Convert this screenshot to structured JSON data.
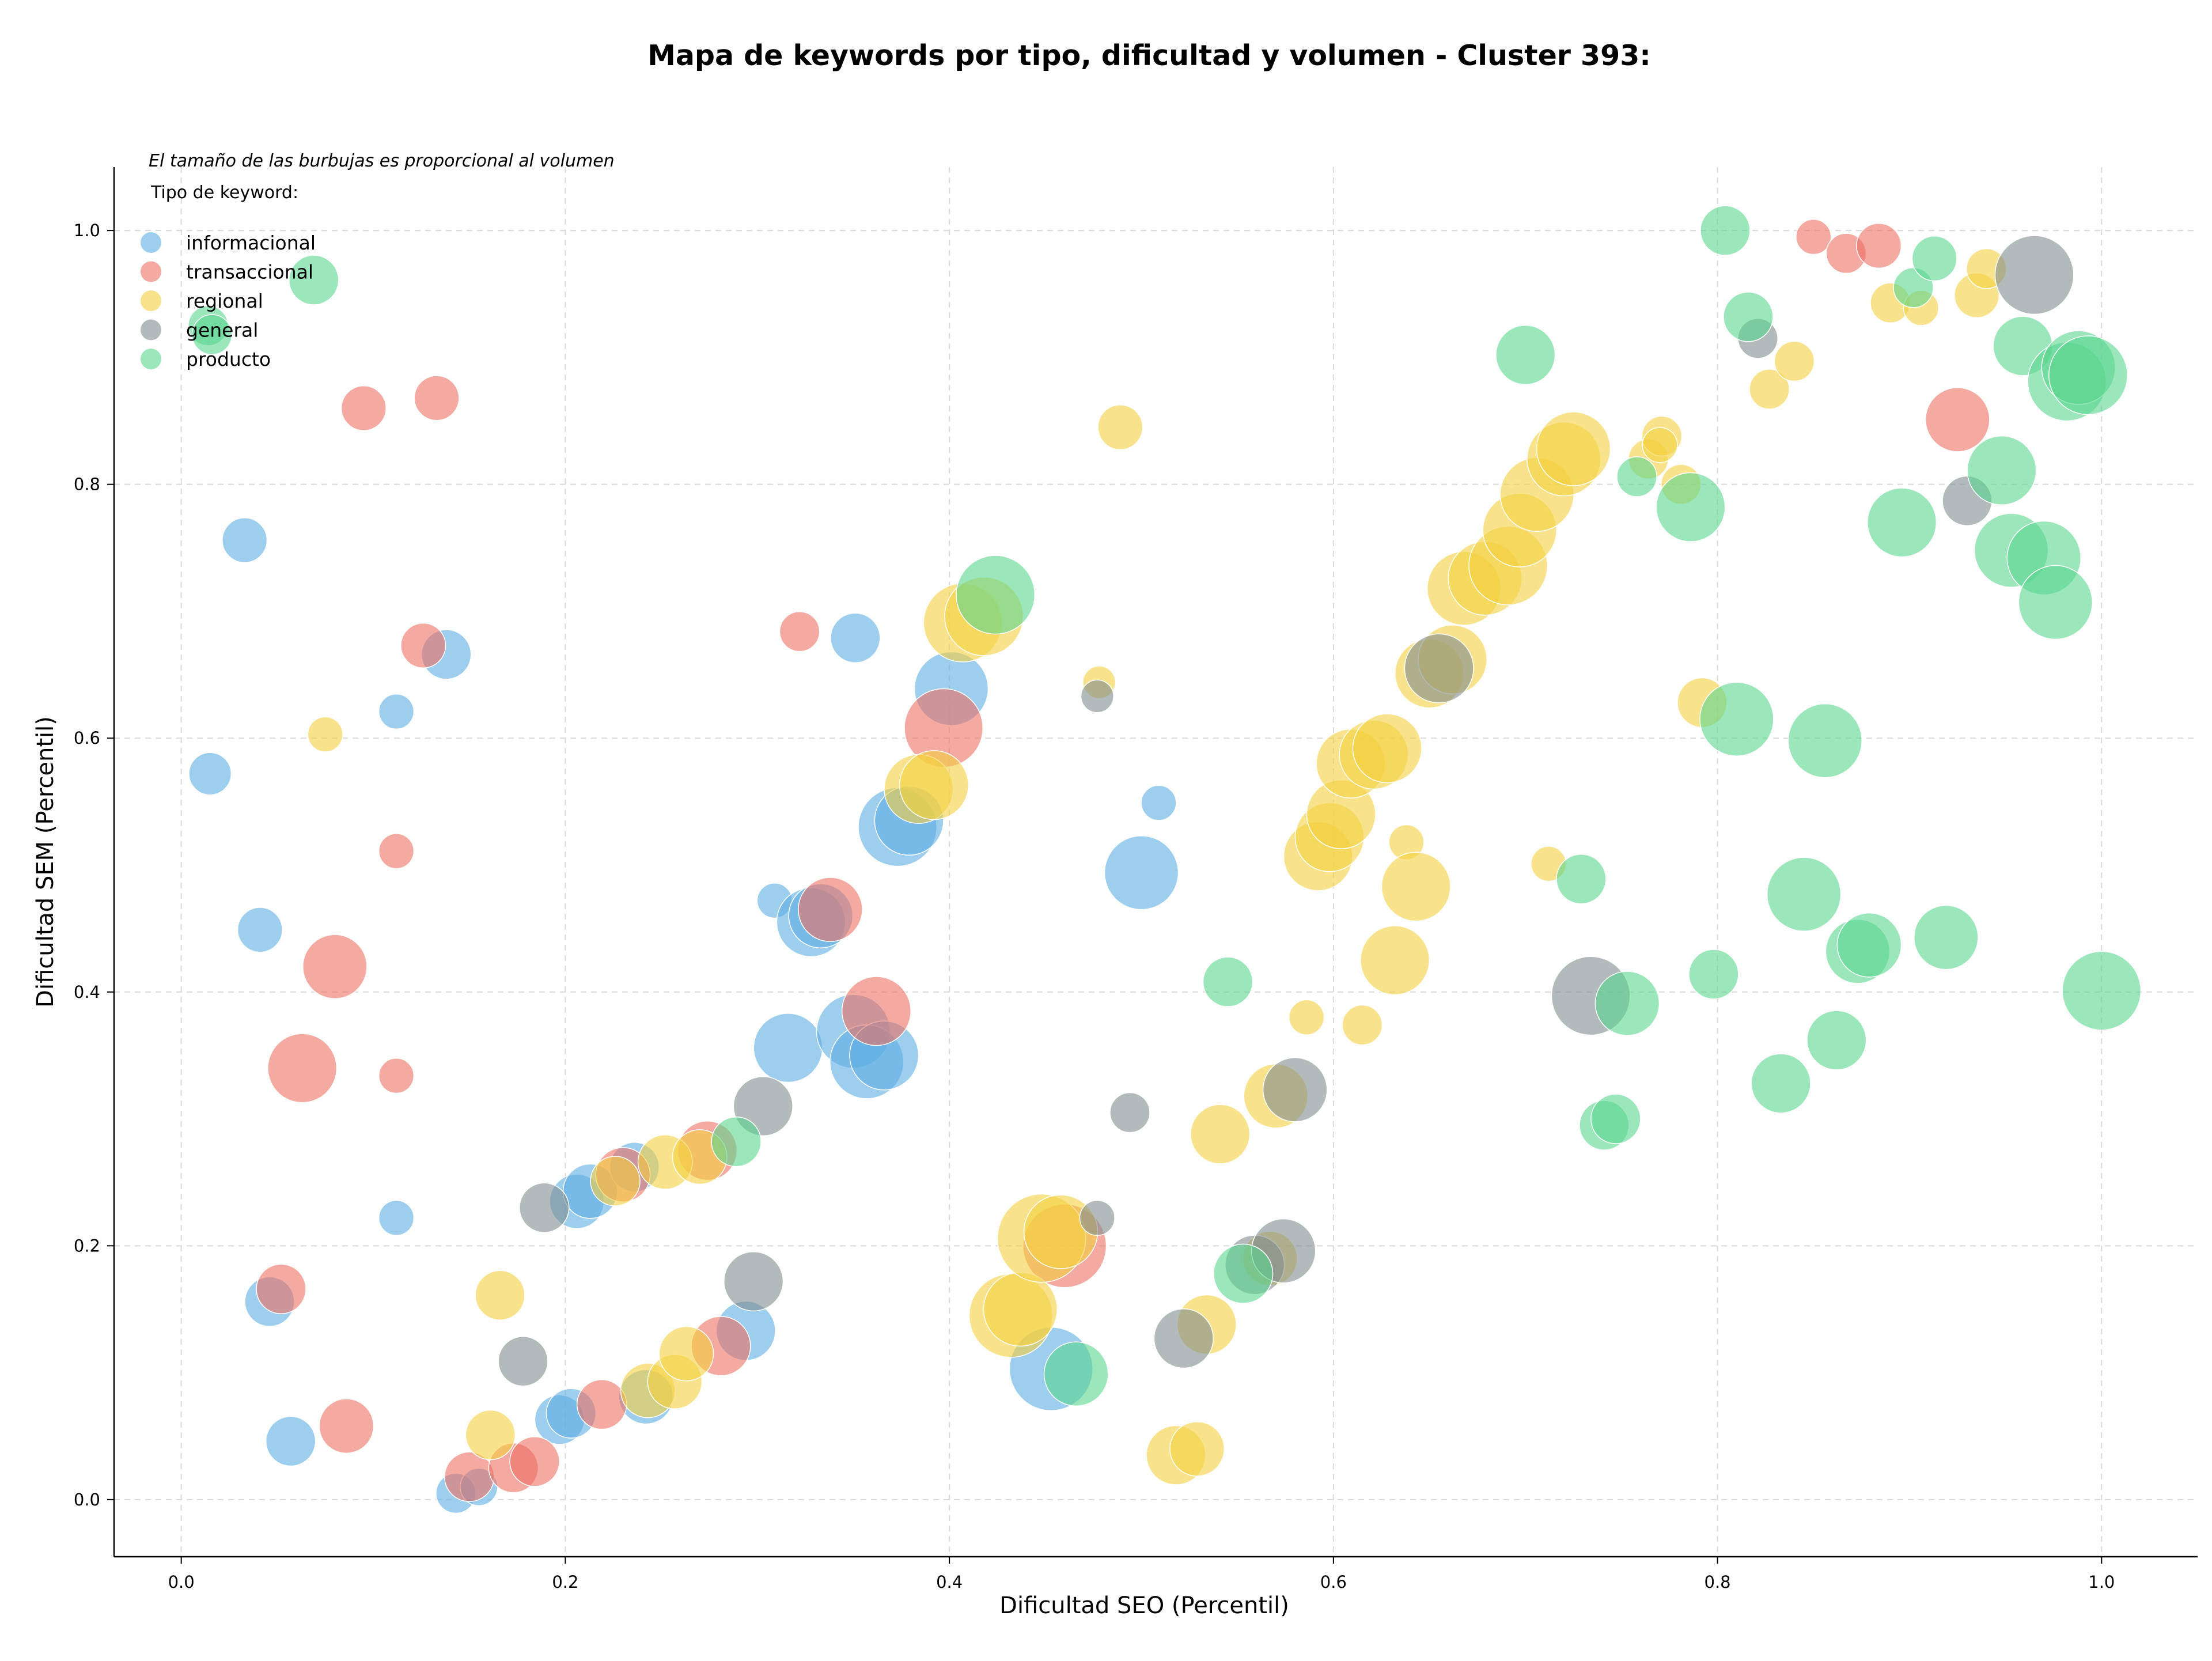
{
  "chart_data": {
    "type": "scatter",
    "title": "Mapa de keywords por tipo, dificultad y volumen - Cluster 393:",
    "xlabel": "Dificultad SEO (Percentil)",
    "ylabel": "Dificultad SEM (Percentil)",
    "xlim": [
      -0.035,
      1.05
    ],
    "ylim": [
      -0.045,
      1.05
    ],
    "xticks": [
      "0.0",
      "0.2",
      "0.4",
      "0.6",
      "0.8",
      "1.0"
    ],
    "yticks": [
      "0.0",
      "0.2",
      "0.4",
      "0.6",
      "0.8",
      "1.0"
    ],
    "grid": true,
    "note": "El tamaño de las burbujas es proporcional al volumen",
    "legend_title": "Tipo de keyword:",
    "legend_position": "top-left",
    "series": [
      {
        "name": "informacional",
        "color": "#5dade2",
        "points": [
          [
            0.033,
            0.756,
            0.4
          ],
          [
            0.015,
            0.572,
            0.35
          ],
          [
            0.041,
            0.449,
            0.4
          ],
          [
            0.112,
            0.621,
            0.2
          ],
          [
            0.138,
            0.666,
            0.5
          ],
          [
            0.112,
            0.222,
            0.2
          ],
          [
            0.046,
            0.156,
            0.5
          ],
          [
            0.057,
            0.046,
            0.5
          ],
          [
            0.143,
            0.005,
            0.3
          ],
          [
            0.155,
            0.01,
            0.25
          ],
          [
            0.197,
            0.063,
            0.5
          ],
          [
            0.203,
            0.068,
            0.5
          ],
          [
            0.242,
            0.081,
            0.6
          ],
          [
            0.294,
            0.133,
            0.7
          ],
          [
            0.206,
            0.235,
            0.6
          ],
          [
            0.213,
            0.243,
            0.6
          ],
          [
            0.236,
            0.262,
            0.5
          ],
          [
            0.309,
            0.472,
            0.2
          ],
          [
            0.316,
            0.356,
            0.9
          ],
          [
            0.328,
            0.455,
            0.9
          ],
          [
            0.333,
            0.46,
            0.8
          ],
          [
            0.35,
            0.369,
            1.0
          ],
          [
            0.357,
            0.345,
            1.0
          ],
          [
            0.366,
            0.35,
            0.9
          ],
          [
            0.373,
            0.53,
            1.1
          ],
          [
            0.379,
            0.535,
            0.9
          ],
          [
            0.351,
            0.679,
            0.5
          ],
          [
            0.401,
            0.639,
            1.0
          ],
          [
            0.5,
            0.494,
            1.0
          ],
          [
            0.509,
            0.549,
            0.2
          ],
          [
            0.453,
            0.103,
            1.2
          ]
        ]
      },
      {
        "name": "transaccional",
        "color": "#ec7063",
        "points": [
          [
            0.095,
            0.86,
            0.4
          ],
          [
            0.133,
            0.868,
            0.4
          ],
          [
            0.126,
            0.673,
            0.4
          ],
          [
            0.112,
            0.511,
            0.2
          ],
          [
            0.08,
            0.42,
            0.8
          ],
          [
            0.063,
            0.34,
            0.9
          ],
          [
            0.112,
            0.334,
            0.2
          ],
          [
            0.052,
            0.166,
            0.5
          ],
          [
            0.086,
            0.058,
            0.6
          ],
          [
            0.15,
            0.018,
            0.5
          ],
          [
            0.173,
            0.025,
            0.5
          ],
          [
            0.184,
            0.03,
            0.5
          ],
          [
            0.219,
            0.075,
            0.5
          ],
          [
            0.281,
            0.121,
            0.7
          ],
          [
            0.23,
            0.256,
            0.6
          ],
          [
            0.274,
            0.275,
            0.7
          ],
          [
            0.338,
            0.465,
            0.8
          ],
          [
            0.362,
            0.385,
            0.9
          ],
          [
            0.397,
            0.608,
            1.1
          ],
          [
            0.322,
            0.684,
            0.3
          ],
          [
            0.46,
            0.2,
            1.2
          ],
          [
            0.85,
            0.995,
            0.2
          ],
          [
            0.867,
            0.982,
            0.3
          ],
          [
            0.884,
            0.988,
            0.4
          ],
          [
            0.925,
            0.851,
            0.8
          ]
        ]
      },
      {
        "name": "regional",
        "color": "#f4d03f",
        "points": [
          [
            0.075,
            0.603,
            0.2
          ],
          [
            0.166,
            0.161,
            0.5
          ],
          [
            0.161,
            0.051,
            0.5
          ],
          [
            0.243,
            0.086,
            0.6
          ],
          [
            0.257,
            0.093,
            0.6
          ],
          [
            0.263,
            0.115,
            0.6
          ],
          [
            0.226,
            0.251,
            0.5
          ],
          [
            0.252,
            0.266,
            0.6
          ],
          [
            0.27,
            0.27,
            0.6
          ],
          [
            0.384,
            0.56,
            0.9
          ],
          [
            0.392,
            0.563,
            0.9
          ],
          [
            0.407,
            0.691,
            1.1
          ],
          [
            0.418,
            0.696,
            1.1
          ],
          [
            0.478,
            0.644,
            0.15
          ],
          [
            0.489,
            0.845,
            0.4
          ],
          [
            0.432,
            0.145,
            1.2
          ],
          [
            0.437,
            0.15,
            1.0
          ],
          [
            0.448,
            0.206,
            1.3
          ],
          [
            0.458,
            0.211,
            1.0
          ],
          [
            0.518,
            0.035,
            0.7
          ],
          [
            0.529,
            0.04,
            0.6
          ],
          [
            0.534,
            0.138,
            0.7
          ],
          [
            0.541,
            0.288,
            0.7
          ],
          [
            0.567,
            0.19,
            0.6
          ],
          [
            0.57,
            0.318,
            0.8
          ],
          [
            0.586,
            0.38,
            0.2
          ],
          [
            0.592,
            0.507,
            0.9
          ],
          [
            0.598,
            0.522,
            0.9
          ],
          [
            0.604,
            0.54,
            0.9
          ],
          [
            0.609,
            0.58,
            0.9
          ],
          [
            0.621,
            0.587,
            0.9
          ],
          [
            0.628,
            0.592,
            0.9
          ],
          [
            0.615,
            0.374,
            0.3
          ],
          [
            0.638,
            0.518,
            0.2
          ],
          [
            0.632,
            0.425,
            0.9
          ],
          [
            0.643,
            0.483,
            0.9
          ],
          [
            0.65,
            0.651,
            0.9
          ],
          [
            0.662,
            0.662,
            0.9
          ],
          [
            0.668,
            0.718,
            1.0
          ],
          [
            0.679,
            0.726,
            1.0
          ],
          [
            0.691,
            0.736,
            1.1
          ],
          [
            0.697,
            0.764,
            1.0
          ],
          [
            0.706,
            0.792,
            1.0
          ],
          [
            0.72,
            0.82,
            1.0
          ],
          [
            0.725,
            0.828,
            1.0
          ],
          [
            0.764,
            0.82,
            0.3
          ],
          [
            0.771,
            0.838,
            0.3
          ],
          [
            0.77,
            0.831,
            0.2
          ],
          [
            0.781,
            0.8,
            0.3
          ],
          [
            0.712,
            0.501,
            0.2
          ],
          [
            0.792,
            0.628,
            0.5
          ],
          [
            0.827,
            0.875,
            0.3
          ],
          [
            0.84,
            0.897,
            0.3
          ],
          [
            0.89,
            0.943,
            0.3
          ],
          [
            0.906,
            0.939,
            0.2
          ],
          [
            0.935,
            0.949,
            0.4
          ],
          [
            0.94,
            0.97,
            0.3
          ]
        ]
      },
      {
        "name": "general",
        "color": "#7f8c8d",
        "points": [
          [
            0.189,
            0.23,
            0.5
          ],
          [
            0.178,
            0.109,
            0.5
          ],
          [
            0.298,
            0.172,
            0.7
          ],
          [
            0.303,
            0.31,
            0.7
          ],
          [
            0.477,
            0.633,
            0.15
          ],
          [
            0.477,
            0.222,
            0.2
          ],
          [
            0.494,
            0.305,
            0.3
          ],
          [
            0.522,
            0.127,
            0.7
          ],
          [
            0.559,
            0.185,
            0.7
          ],
          [
            0.574,
            0.196,
            0.8
          ],
          [
            0.58,
            0.323,
            0.8
          ],
          [
            0.655,
            0.655,
            0.9
          ],
          [
            0.734,
            0.397,
            1.1
          ],
          [
            0.821,
            0.915,
            0.3
          ],
          [
            0.93,
            0.787,
            0.5
          ],
          [
            0.965,
            0.965,
            1.1
          ]
        ]
      },
      {
        "name": "producto",
        "color": "#58d68d",
        "points": [
          [
            0.069,
            0.961,
            0.5
          ],
          [
            0.014,
            0.925,
            0.3
          ],
          [
            0.016,
            0.918,
            0.3
          ],
          [
            0.289,
            0.282,
            0.5
          ],
          [
            0.424,
            0.713,
            1.1
          ],
          [
            0.466,
            0.099,
            0.8
          ],
          [
            0.545,
            0.408,
            0.5
          ],
          [
            0.553,
            0.178,
            0.7
          ],
          [
            0.7,
            0.902,
            0.7
          ],
          [
            0.729,
            0.489,
            0.5
          ],
          [
            0.758,
            0.806,
            0.3
          ],
          [
            0.786,
            0.782,
            0.9
          ],
          [
            0.741,
            0.295,
            0.5
          ],
          [
            0.747,
            0.3,
            0.5
          ],
          [
            0.753,
            0.391,
            0.8
          ],
          [
            0.798,
            0.414,
            0.5
          ],
          [
            0.81,
            0.615,
            1.0
          ],
          [
            0.804,
            1.0,
            0.5
          ],
          [
            0.816,
            0.932,
            0.5
          ],
          [
            0.833,
            0.328,
            0.7
          ],
          [
            0.845,
            0.477,
            1.0
          ],
          [
            0.856,
            0.598,
            1.0
          ],
          [
            0.862,
            0.362,
            0.7
          ],
          [
            0.873,
            0.432,
            0.8
          ],
          [
            0.879,
            0.437,
            0.8
          ],
          [
            0.896,
            0.77,
            0.9
          ],
          [
            0.902,
            0.955,
            0.3
          ],
          [
            0.913,
            0.978,
            0.4
          ],
          [
            0.919,
            0.443,
            0.8
          ],
          [
            0.948,
            0.811,
            0.9
          ],
          [
            0.953,
            0.748,
            1.0
          ],
          [
            0.959,
            0.909,
            0.7
          ],
          [
            0.97,
            0.742,
            1.0
          ],
          [
            0.976,
            0.707,
            1.0
          ],
          [
            0.982,
            0.881,
            1.1
          ],
          [
            0.988,
            0.892,
            1.0
          ],
          [
            0.993,
            0.886,
            1.1
          ],
          [
            1.0,
            0.401,
            1.1
          ]
        ]
      }
    ]
  }
}
